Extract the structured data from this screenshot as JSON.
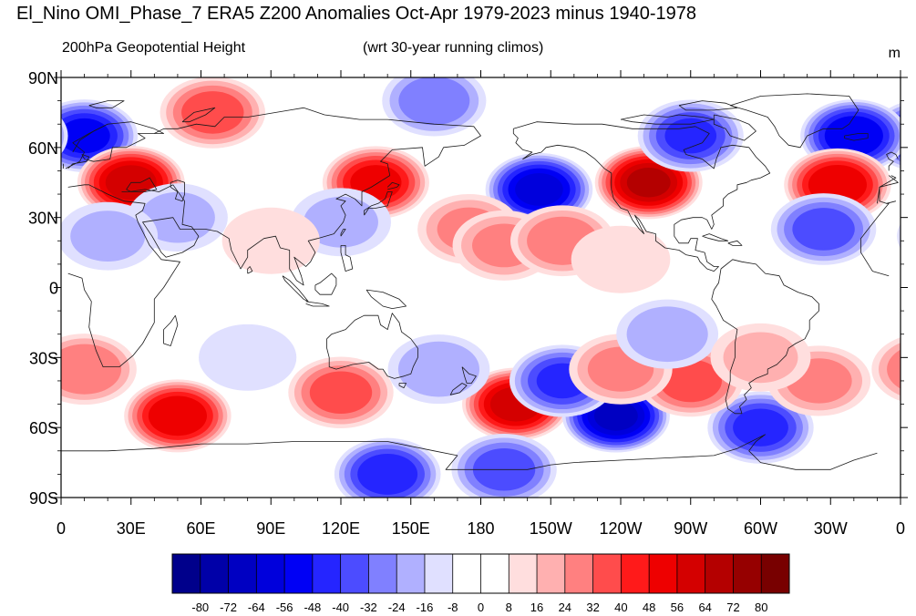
{
  "chart_data": {
    "type": "heatmap",
    "title": "El_Nino OMI_Phase_7 ERA5 Z200 Anomalies Oct-Apr 1979-2023 minus 1940-1978",
    "left_subtitle": "200hPa Geopotential Height",
    "center_subtitle": "(wrt 30-year running climos)",
    "units": "m",
    "x_tick_labels": [
      "0",
      "30E",
      "60E",
      "90E",
      "120E",
      "150E",
      "180",
      "150W",
      "120W",
      "90W",
      "60W",
      "30W",
      "0"
    ],
    "x_ticks_lon": [
      0,
      30,
      60,
      90,
      120,
      150,
      180,
      210,
      240,
      270,
      300,
      330,
      360
    ],
    "y_tick_labels": [
      "90N",
      "60N",
      "30N",
      "0",
      "30S",
      "60S",
      "90S"
    ],
    "y_ticks_lat": [
      90,
      60,
      30,
      0,
      -30,
      -60,
      -90
    ],
    "xlim": [
      0,
      360
    ],
    "ylim": [
      -90,
      90
    ],
    "colorbar": {
      "levels": [
        -80,
        -72,
        -64,
        -56,
        -48,
        -40,
        -32,
        -24,
        -16,
        -8,
        0,
        8,
        16,
        24,
        32,
        40,
        48,
        56,
        64,
        72,
        80
      ],
      "labels": [
        "-80",
        "-72",
        "-64",
        "-56",
        "-48",
        "-40",
        "-32",
        "-24",
        "-16",
        "-8",
        "0",
        "8",
        "16",
        "24",
        "32",
        "40",
        "48",
        "56",
        "64",
        "72",
        "80"
      ],
      "colors": [
        "#00008b",
        "#0000a8",
        "#0000c2",
        "#0000dc",
        "#0000f5",
        "#2525ff",
        "#4c4cff",
        "#8080ff",
        "#b0b0ff",
        "#e0e0ff",
        "#ffffff",
        "#ffffff",
        "#ffdede",
        "#ffb0b0",
        "#ff8080",
        "#ff4c4c",
        "#ff1a1a",
        "#ee0000",
        "#d40000",
        "#b40000",
        "#960000",
        "#780000"
      ]
    },
    "anomaly_centers": [
      {
        "lon": 10,
        "lat": 65,
        "value": -50
      },
      {
        "lon": 30,
        "lat": 45,
        "value": 60
      },
      {
        "lon": 65,
        "lat": 75,
        "value": 35
      },
      {
        "lon": 135,
        "lat": 45,
        "value": 50
      },
      {
        "lon": 160,
        "lat": 80,
        "value": -28
      },
      {
        "lon": 205,
        "lat": 42,
        "value": -58
      },
      {
        "lon": 252,
        "lat": 45,
        "value": 65
      },
      {
        "lon": 270,
        "lat": 65,
        "value": -40
      },
      {
        "lon": 340,
        "lat": 65,
        "value": -55
      },
      {
        "lon": 333,
        "lat": 44,
        "value": 55
      },
      {
        "lon": 327,
        "lat": 25,
        "value": -35
      },
      {
        "lon": 175,
        "lat": 25,
        "value": 24
      },
      {
        "lon": 190,
        "lat": 18,
        "value": 24
      },
      {
        "lon": 215,
        "lat": 20,
        "value": 28
      },
      {
        "lon": 50,
        "lat": 30,
        "value": -16
      },
      {
        "lon": 120,
        "lat": 28,
        "value": -16
      },
      {
        "lon": 20,
        "lat": 22,
        "value": -16
      },
      {
        "lon": 90,
        "lat": 20,
        "value": 12
      },
      {
        "lon": 240,
        "lat": 12,
        "value": 14
      },
      {
        "lon": 50,
        "lat": -55,
        "value": 55
      },
      {
        "lon": 120,
        "lat": -45,
        "value": 35
      },
      {
        "lon": 10,
        "lat": -35,
        "value": 30
      },
      {
        "lon": 195,
        "lat": -50,
        "value": 60
      },
      {
        "lon": 238,
        "lat": -55,
        "value": -65
      },
      {
        "lon": 215,
        "lat": -40,
        "value": -40
      },
      {
        "lon": 140,
        "lat": -80,
        "value": -45
      },
      {
        "lon": 190,
        "lat": -78,
        "value": -35
      },
      {
        "lon": 300,
        "lat": -60,
        "value": -42
      },
      {
        "lon": 270,
        "lat": -40,
        "value": 35
      },
      {
        "lon": 325,
        "lat": -40,
        "value": 25
      },
      {
        "lon": 240,
        "lat": -35,
        "value": 25
      },
      {
        "lon": 162,
        "lat": -35,
        "value": -20
      },
      {
        "lon": 260,
        "lat": -20,
        "value": -20
      },
      {
        "lon": 80,
        "lat": -30,
        "value": -12
      },
      {
        "lon": 300,
        "lat": -30,
        "value": 16
      }
    ]
  }
}
